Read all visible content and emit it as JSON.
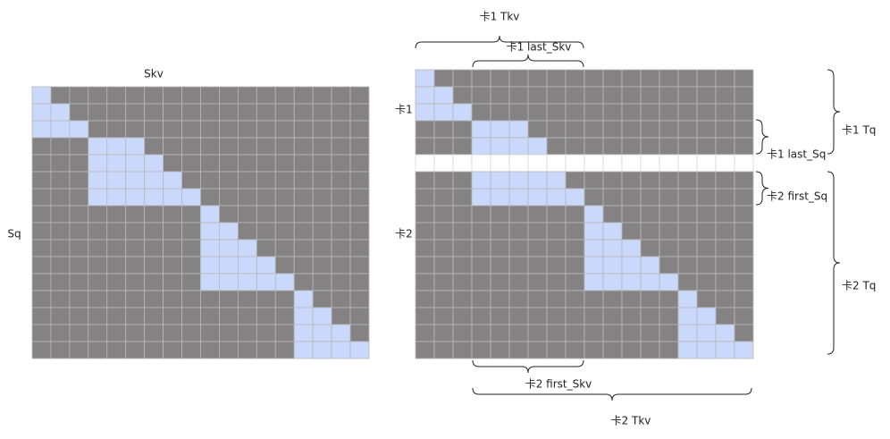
{
  "left": {
    "top_label": "Skv",
    "side_label": "Sq"
  },
  "right": {
    "row_labels": [
      "卡1",
      "卡2"
    ],
    "top_braces": [
      "卡1 Tkv",
      "卡1 last_Skv"
    ],
    "bottom_braces": [
      "卡2  first_Skv",
      "卡2 Tkv"
    ],
    "right_braces": [
      "卡1 Tq",
      "卡1 last_Sq",
      "卡2 first_Sq",
      "卡2 Tq"
    ]
  }
}
